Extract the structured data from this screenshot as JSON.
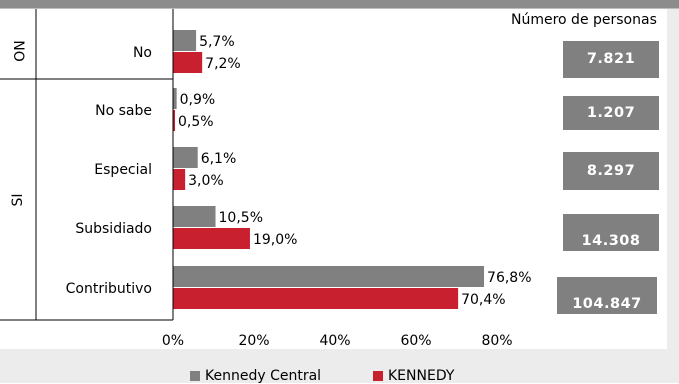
{
  "chart_data": {
    "type": "bar",
    "orientation": "horizontal",
    "categories": [
      "No",
      "No sabe",
      "Especial",
      "Subsidiado",
      "Contributivo"
    ],
    "groups": [
      {
        "label": "NO",
        "categories": [
          "No"
        ]
      },
      {
        "label": "SI",
        "categories": [
          "No sabe",
          "Especial",
          "Subsidiado",
          "Contributivo"
        ]
      }
    ],
    "series": [
      {
        "name": "Kennedy Central",
        "color": "#808080",
        "values": [
          5.7,
          0.9,
          6.1,
          10.5,
          76.8
        ],
        "value_labels": [
          "5,7%",
          "0,9%",
          "6,1%",
          "10,5%",
          "76,8%"
        ]
      },
      {
        "name": "KENNEDY",
        "color": "#c8202f",
        "values": [
          7.2,
          0.5,
          3.0,
          19.0,
          70.4
        ],
        "value_labels": [
          "7,2%",
          "0,5%",
          "3,0%",
          "19,0%",
          "70,4%"
        ]
      }
    ],
    "xlim": [
      0,
      80
    ],
    "x_ticks": [
      "0%",
      "20%",
      "40%",
      "60%",
      "80%"
    ],
    "grid": false,
    "legend_position": "bottom",
    "side_counts": {
      "title": "Número de personas",
      "values": [
        "7.821",
        "1.207",
        "8.297",
        "14.308",
        "104.847"
      ]
    }
  }
}
